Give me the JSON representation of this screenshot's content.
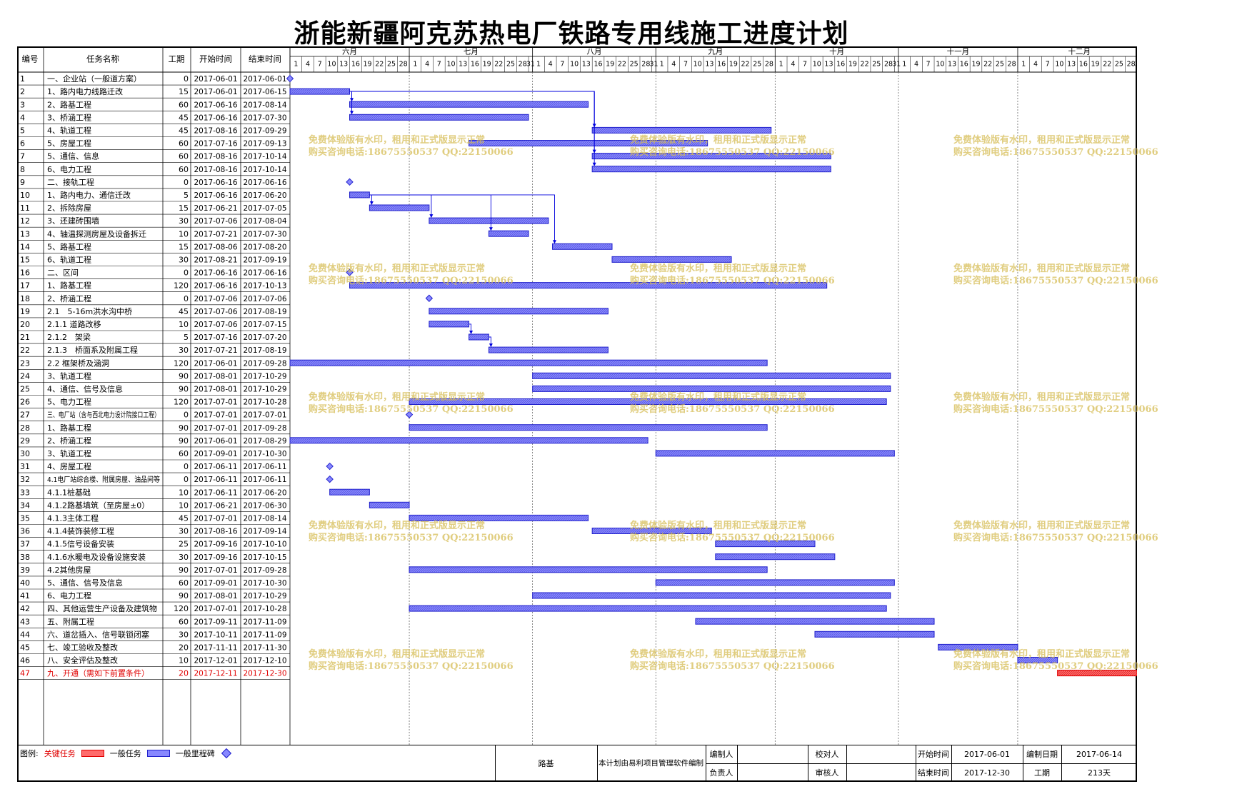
{
  "title": "浙能新疆阿克苏热电厂铁路专用线施工进度计划",
  "columns": {
    "id": "编号",
    "name": "任务名称",
    "duration": "工期",
    "start": "开始时间",
    "end": "结束时间"
  },
  "months": [
    "六月",
    "七月",
    "八月",
    "九月",
    "十月",
    "十一月",
    "十二月"
  ],
  "colors": {
    "bar": "#8888ff",
    "bar_border": "#2222cc",
    "critical": "#ff6b6b",
    "critical_border": "#e00000",
    "link": "#0000dd",
    "watermark": "#d6bc54"
  },
  "chart_data": {
    "type": "gantt",
    "title": "浙能新疆阿克苏热电厂铁路专用线施工进度计划",
    "x_range": [
      "2017-06-01",
      "2017-12-31"
    ],
    "tasks": [
      {
        "id": "1",
        "name": "一、企业站（一般道方案）",
        "duration": "0",
        "start": "2017-06-01",
        "end": "2017-06-01",
        "kind": "milestone"
      },
      {
        "id": "2",
        "name": "1、路内电力线路迁改",
        "duration": "15",
        "start": "2017-06-01",
        "end": "2017-06-15",
        "kind": "task"
      },
      {
        "id": "3",
        "name": "2、路基工程",
        "duration": "60",
        "start": "2017-06-16",
        "end": "2017-08-14",
        "kind": "task"
      },
      {
        "id": "4",
        "name": "3、桥涵工程",
        "duration": "45",
        "start": "2017-06-16",
        "end": "2017-07-30",
        "kind": "task"
      },
      {
        "id": "5",
        "name": "4、轨道工程",
        "duration": "45",
        "start": "2017-08-16",
        "end": "2017-09-29",
        "kind": "task"
      },
      {
        "id": "6",
        "name": "5、房屋工程",
        "duration": "60",
        "start": "2017-07-16",
        "end": "2017-09-13",
        "kind": "task"
      },
      {
        "id": "7",
        "name": "5、通信、信息",
        "duration": "60",
        "start": "2017-08-16",
        "end": "2017-10-14",
        "kind": "task"
      },
      {
        "id": "8",
        "name": "6、电力工程",
        "duration": "60",
        "start": "2017-08-16",
        "end": "2017-10-14",
        "kind": "task"
      },
      {
        "id": "9",
        "name": "二、接轨工程",
        "duration": "0",
        "start": "2017-06-16",
        "end": "2017-06-16",
        "kind": "milestone"
      },
      {
        "id": "10",
        "name": "1、路内电力、通信迁改",
        "duration": "5",
        "start": "2017-06-16",
        "end": "2017-06-20",
        "kind": "task"
      },
      {
        "id": "11",
        "name": "2、拆除房屋",
        "duration": "15",
        "start": "2017-06-21",
        "end": "2017-07-05",
        "kind": "task"
      },
      {
        "id": "12",
        "name": "3、还建砖围墙",
        "duration": "30",
        "start": "2017-07-06",
        "end": "2017-08-04",
        "kind": "task"
      },
      {
        "id": "13",
        "name": "4、轴温探测房屋及设备拆迁",
        "duration": "10",
        "start": "2017-07-21",
        "end": "2017-07-30",
        "kind": "task"
      },
      {
        "id": "14",
        "name": "5、路基工程",
        "duration": "15",
        "start": "2017-08-06",
        "end": "2017-08-20",
        "kind": "task"
      },
      {
        "id": "15",
        "name": "6、轨道工程",
        "duration": "30",
        "start": "2017-08-21",
        "end": "2017-09-19",
        "kind": "task"
      },
      {
        "id": "16",
        "name": "二、区间",
        "duration": "0",
        "start": "2017-06-16",
        "end": "2017-06-16",
        "kind": "milestone"
      },
      {
        "id": "17",
        "name": "1、路基工程",
        "duration": "120",
        "start": "2017-06-16",
        "end": "2017-10-13",
        "kind": "task"
      },
      {
        "id": "18",
        "name": "2、桥涵工程",
        "duration": "0",
        "start": "2017-07-06",
        "end": "2017-07-06",
        "kind": "milestone"
      },
      {
        "id": "19",
        "name": "2.1　5-16m洪水沟中桥",
        "duration": "45",
        "start": "2017-07-06",
        "end": "2017-08-19",
        "kind": "task"
      },
      {
        "id": "20",
        "name": "2.1.1 道路改移",
        "duration": "10",
        "start": "2017-07-06",
        "end": "2017-07-15",
        "kind": "task"
      },
      {
        "id": "21",
        "name": "2.1.2　架梁",
        "duration": "5",
        "start": "2017-07-16",
        "end": "2017-07-20",
        "kind": "task"
      },
      {
        "id": "22",
        "name": "2.1.3　桥面系及附属工程",
        "duration": "30",
        "start": "2017-07-21",
        "end": "2017-08-19",
        "kind": "task"
      },
      {
        "id": "23",
        "name": "2.2 框架桥及涵洞",
        "duration": "120",
        "start": "2017-06-01",
        "end": "2017-09-28",
        "kind": "task"
      },
      {
        "id": "24",
        "name": "3、轨道工程",
        "duration": "90",
        "start": "2017-08-01",
        "end": "2017-10-29",
        "kind": "task"
      },
      {
        "id": "25",
        "name": "4、通信、信号及信息",
        "duration": "90",
        "start": "2017-08-01",
        "end": "2017-10-29",
        "kind": "task"
      },
      {
        "id": "26",
        "name": "5、电力工程",
        "duration": "120",
        "start": "2017-07-01",
        "end": "2017-10-28",
        "kind": "task"
      },
      {
        "id": "27",
        "name": "三、电厂站（含与西北电力设计院接口工程）",
        "duration": "0",
        "start": "2017-07-01",
        "end": "2017-07-01",
        "kind": "milestone"
      },
      {
        "id": "28",
        "name": "1、路基工程",
        "duration": "90",
        "start": "2017-07-01",
        "end": "2017-09-28",
        "kind": "task"
      },
      {
        "id": "29",
        "name": "2、桥涵工程",
        "duration": "90",
        "start": "2017-06-01",
        "end": "2017-08-29",
        "kind": "task"
      },
      {
        "id": "30",
        "name": "3、轨道工程",
        "duration": "60",
        "start": "2017-09-01",
        "end": "2017-10-30",
        "kind": "task"
      },
      {
        "id": "31",
        "name": "4、房屋工程",
        "duration": "0",
        "start": "2017-06-11",
        "end": "2017-06-11",
        "kind": "milestone"
      },
      {
        "id": "32",
        "name": "4.1电厂站综合楼、附属房屋、油品间等",
        "duration": "0",
        "start": "2017-06-11",
        "end": "2017-06-11",
        "kind": "milestone"
      },
      {
        "id": "33",
        "name": "4.1.1桩基础",
        "duration": "10",
        "start": "2017-06-11",
        "end": "2017-06-20",
        "kind": "task"
      },
      {
        "id": "34",
        "name": "4.1.2路基填筑（至房屋±0）",
        "duration": "10",
        "start": "2017-06-21",
        "end": "2017-06-30",
        "kind": "task"
      },
      {
        "id": "35",
        "name": "4.1.3主体工程",
        "duration": "45",
        "start": "2017-07-01",
        "end": "2017-08-14",
        "kind": "task"
      },
      {
        "id": "36",
        "name": "4.1.4装饰装修工程",
        "duration": "30",
        "start": "2017-08-16",
        "end": "2017-09-14",
        "kind": "task"
      },
      {
        "id": "37",
        "name": "4.1.5信号设备安装",
        "duration": "25",
        "start": "2017-09-16",
        "end": "2017-10-10",
        "kind": "task"
      },
      {
        "id": "38",
        "name": "4.1.6水暖电及设备设施安装",
        "duration": "30",
        "start": "2017-09-16",
        "end": "2017-10-15",
        "kind": "task"
      },
      {
        "id": "39",
        "name": "4.2其他房屋",
        "duration": "90",
        "start": "2017-07-01",
        "end": "2017-09-28",
        "kind": "task"
      },
      {
        "id": "40",
        "name": "5、通信、信号及信息",
        "duration": "60",
        "start": "2017-09-01",
        "end": "2017-10-30",
        "kind": "task"
      },
      {
        "id": "41",
        "name": "6、电力工程",
        "duration": "90",
        "start": "2017-08-01",
        "end": "2017-10-29",
        "kind": "task"
      },
      {
        "id": "42",
        "name": "四、其他运营生产设备及建筑物",
        "duration": "120",
        "start": "2017-07-01",
        "end": "2017-10-28",
        "kind": "task"
      },
      {
        "id": "43",
        "name": "五、附属工程",
        "duration": "60",
        "start": "2017-09-11",
        "end": "2017-11-09",
        "kind": "task"
      },
      {
        "id": "44",
        "name": "六、道岔插入、信号联锁闭塞",
        "duration": "30",
        "start": "2017-10-11",
        "end": "2017-11-09",
        "kind": "task"
      },
      {
        "id": "45",
        "name": "七、竣工验收及整改",
        "duration": "20",
        "start": "2017-11-11",
        "end": "2017-11-30",
        "kind": "task"
      },
      {
        "id": "46",
        "name": "八、安全评估及整改",
        "duration": "10",
        "start": "2017-12-01",
        "end": "2017-12-10",
        "kind": "task"
      },
      {
        "id": "47",
        "name": "九、开通（需如下前置条件）",
        "duration": "20",
        "start": "2017-12-11",
        "end": "2017-12-30",
        "kind": "critical"
      }
    ],
    "links": [
      [
        2,
        3
      ],
      [
        2,
        4
      ],
      [
        2,
        5
      ],
      [
        2,
        7
      ],
      [
        2,
        8
      ],
      [
        10,
        11
      ],
      [
        10,
        12
      ],
      [
        10,
        13
      ],
      [
        10,
        14
      ],
      [
        20,
        21
      ],
      [
        21,
        22
      ]
    ]
  },
  "legend": {
    "label": "图例:",
    "critical": "关键任务",
    "normal": "一般任务",
    "milestone": "一般里程碑"
  },
  "footer": {
    "plan_name": "路基",
    "software_note": "本计划由易利项目管理软件编制",
    "prepared_by": "编制人",
    "checked_by": "校对人",
    "responsible": "负责人",
    "reviewed_by": "审核人",
    "start_label": "开始时间",
    "start_value": "2017-06-01",
    "end_label": "结束时间",
    "end_value": "2017-12-30",
    "date_label": "编制日期",
    "date_value": "2017-06-14",
    "period_label": "工期",
    "period_value": "213天"
  },
  "watermark": {
    "line1": "免费体验版有水印，租用和正式版显示正常",
    "line2": "购买咨询电话:18675550537 QQ:22150066"
  }
}
